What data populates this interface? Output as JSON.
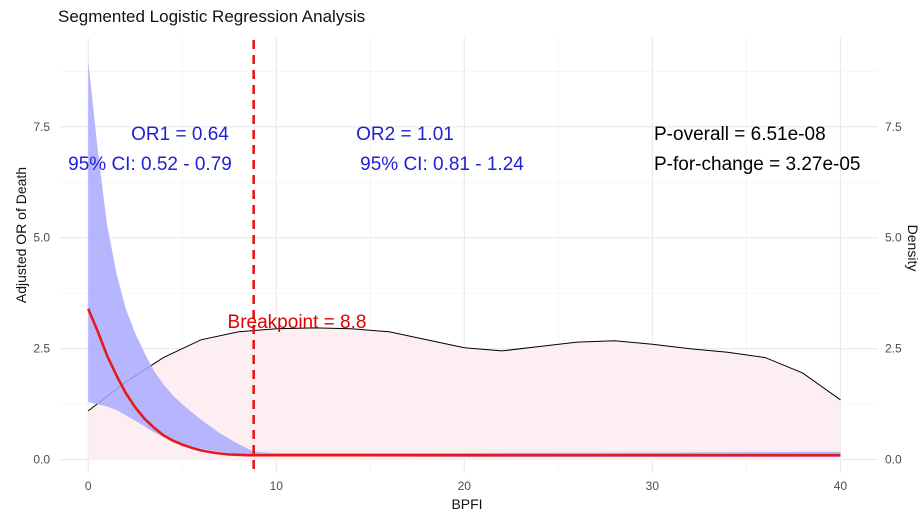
{
  "chart_data": {
    "type": "line",
    "title": "Segmented Logistic Regression Analysis",
    "xlabel": "BPFI",
    "ylabel": "Adjusted OR of Death",
    "y2label": "Density",
    "xlim": [
      -1.5,
      42
    ],
    "ylim": [
      -0.3,
      9.5
    ],
    "x_ticks": [
      0,
      10,
      20,
      30,
      40
    ],
    "y_ticks": [
      0.0,
      2.5,
      5.0,
      7.5
    ],
    "y_tick_labels": [
      "0.0",
      "2.5",
      "5.0",
      "7.5"
    ],
    "y2_ticks": [
      0.0,
      2.5,
      5.0,
      7.5
    ],
    "y2_tick_labels": [
      "0.0",
      "2.5",
      "5.0",
      "7.5"
    ],
    "grid": true,
    "breakpoint": 8.8,
    "series": [
      {
        "type": "line",
        "color": "#e41a1c",
        "x": [
          0,
          0.5,
          1,
          1.5,
          2,
          2.5,
          3,
          3.5,
          4,
          4.5,
          5,
          5.5,
          6,
          6.5,
          7,
          7.5,
          8,
          8.5,
          8.8,
          10,
          15,
          20,
          25,
          30,
          35,
          40
        ],
        "y": [
          3.4,
          2.9,
          2.35,
          1.9,
          1.5,
          1.18,
          0.92,
          0.72,
          0.55,
          0.43,
          0.34,
          0.27,
          0.21,
          0.17,
          0.14,
          0.12,
          0.11,
          0.1,
          0.1,
          0.1,
          0.1,
          0.1,
          0.1,
          0.1,
          0.1,
          0.1
        ]
      },
      {
        "type": "ribbon",
        "color": "#a9a9ff",
        "x": [
          0,
          0.5,
          1,
          1.5,
          2,
          2.5,
          3,
          3.5,
          4,
          4.5,
          5,
          6,
          7,
          8,
          8.8,
          10,
          20,
          30,
          40
        ],
        "lower": [
          1.3,
          1.25,
          1.2,
          1.12,
          1.0,
          0.88,
          0.75,
          0.62,
          0.52,
          0.43,
          0.36,
          0.25,
          0.18,
          0.13,
          0.1,
          0.08,
          0.06,
          0.06,
          0.06
        ],
        "upper": [
          9.0,
          7.0,
          5.3,
          4.2,
          3.4,
          2.85,
          2.4,
          2.0,
          1.7,
          1.45,
          1.25,
          0.9,
          0.6,
          0.35,
          0.18,
          0.15,
          0.15,
          0.16,
          0.18
        ]
      },
      {
        "type": "density",
        "color": "#000000",
        "fill": "#fdeef2",
        "x": [
          0,
          2,
          4,
          6,
          8,
          10,
          12,
          14,
          16,
          18,
          20,
          22,
          24,
          26,
          28,
          30,
          32,
          34,
          36,
          38,
          40
        ],
        "y": [
          1.1,
          1.75,
          2.3,
          2.7,
          2.88,
          2.95,
          2.97,
          2.95,
          2.88,
          2.7,
          2.52,
          2.45,
          2.55,
          2.65,
          2.68,
          2.6,
          2.5,
          2.42,
          2.3,
          1.95,
          1.35
        ]
      }
    ],
    "annotations": {
      "or1": "OR1 = 0.64",
      "ci1": "95% CI: 0.52 - 0.79",
      "or2": "OR2 = 1.01",
      "ci2": "95% CI: 0.81 - 1.24",
      "p_overall": "P-overall = 6.51e-08",
      "p_change": "P-for-change = 3.27e-05",
      "breakpoint": "Breakpoint = 8.8"
    },
    "colors": {
      "line": "#e41a1c",
      "ribbon": "#a9a9ff",
      "density_fill": "#fdeef2",
      "breakpoint_line": "#e41a1c",
      "annotation_blue": "#1f1fd6"
    }
  }
}
